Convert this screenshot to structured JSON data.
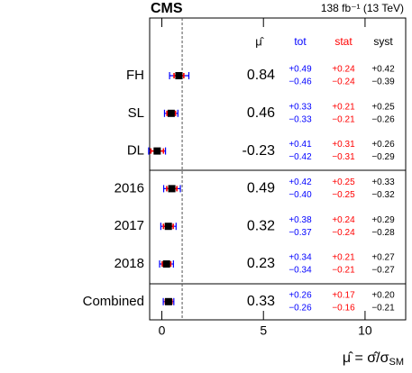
{
  "chart_data": {
    "type": "forest",
    "experiment": "CMS",
    "lumi": "138 fb⁻¹ (13 TeV)",
    "value_header": "μ̂",
    "xlabel": "μ̂ = σ̂/σ",
    "xlabel_sub": "SM",
    "categories": [
      "FH",
      "SL",
      "DL",
      "2016",
      "2017",
      "2018",
      "Combined"
    ],
    "values": [
      0.84,
      0.46,
      -0.23,
      0.49,
      0.32,
      0.23,
      0.33
    ],
    "reference": 1,
    "xlim": [
      -0.6,
      12
    ],
    "xticks": [
      0,
      5,
      10
    ],
    "series": [
      {
        "name": "tot",
        "color": "#0000ff",
        "upper": [
          0.49,
          0.33,
          0.41,
          0.42,
          0.38,
          0.34,
          0.26
        ],
        "lower": [
          -0.46,
          -0.33,
          -0.42,
          -0.4,
          -0.37,
          -0.34,
          -0.26
        ],
        "upper_labels": [
          "+0.49",
          "+0.33",
          "+0.41",
          "+0.42",
          "+0.38",
          "+0.34",
          "+0.26"
        ],
        "lower_labels": [
          "−0.46",
          "−0.33",
          "−0.42",
          "−0.40",
          "−0.37",
          "−0.34",
          "−0.26"
        ]
      },
      {
        "name": "stat",
        "color": "#ff0000",
        "upper": [
          0.24,
          0.21,
          0.31,
          0.25,
          0.24,
          0.21,
          0.17
        ],
        "lower": [
          -0.24,
          -0.21,
          -0.31,
          -0.25,
          -0.24,
          -0.21,
          -0.16
        ],
        "upper_labels": [
          "+0.24",
          "+0.21",
          "+0.31",
          "+0.25",
          "+0.24",
          "+0.21",
          "+0.17"
        ],
        "lower_labels": [
          "−0.24",
          "−0.21",
          "−0.31",
          "−0.25",
          "−0.24",
          "−0.21",
          "−0.16"
        ]
      },
      {
        "name": "syst",
        "color": "#000000",
        "upper": [
          0.42,
          0.25,
          0.26,
          0.33,
          0.29,
          0.27,
          0.2
        ],
        "lower": [
          -0.39,
          -0.26,
          -0.29,
          -0.32,
          -0.28,
          -0.27,
          -0.21
        ],
        "upper_labels": [
          "+0.42",
          "+0.25",
          "+0.26",
          "+0.33",
          "+0.29",
          "+0.27",
          "+0.20"
        ],
        "lower_labels": [
          "−0.39",
          "−0.26",
          "−0.29",
          "−0.32",
          "−0.28",
          "−0.27",
          "−0.21"
        ]
      }
    ]
  }
}
